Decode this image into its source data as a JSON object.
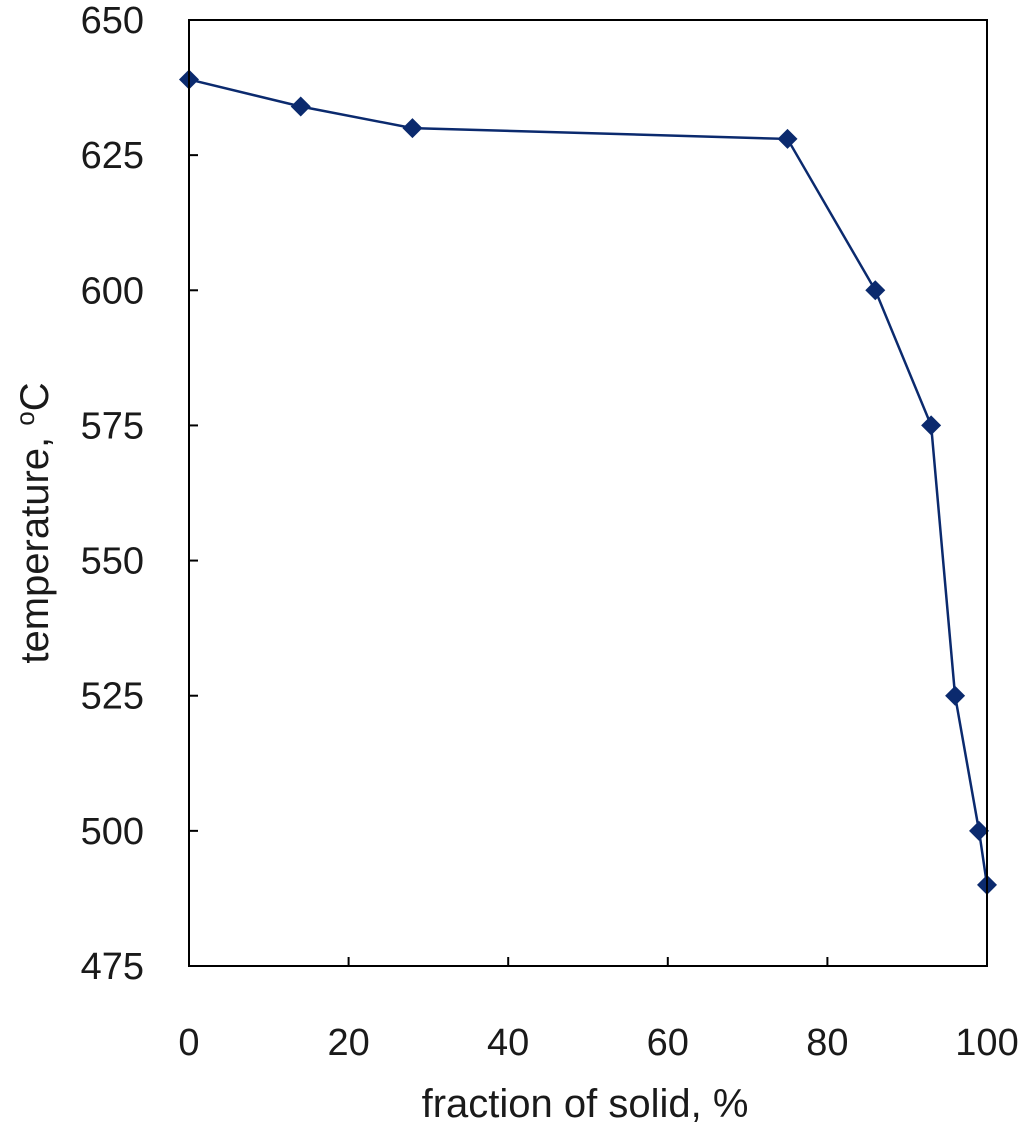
{
  "chart_data": {
    "type": "line",
    "title": "",
    "xlabel": "fraction of solid, %",
    "ylabel_main": "temperature, ",
    "ylabel_super": "o",
    "ylabel_unit": "C",
    "xlim": [
      0,
      100
    ],
    "ylim": [
      475,
      650
    ],
    "xticks": [
      0,
      20,
      40,
      60,
      80,
      100
    ],
    "yticks": [
      475,
      500,
      525,
      550,
      575,
      600,
      625,
      650
    ],
    "grid": false,
    "legend": "none",
    "marker": "diamond",
    "line_color": "#0b2a6e",
    "series": [
      {
        "x": [
          0,
          14,
          28,
          75,
          86,
          93,
          96,
          99,
          100
        ],
        "y": [
          639,
          634,
          630,
          628,
          600,
          575,
          525,
          500,
          490
        ]
      }
    ]
  }
}
